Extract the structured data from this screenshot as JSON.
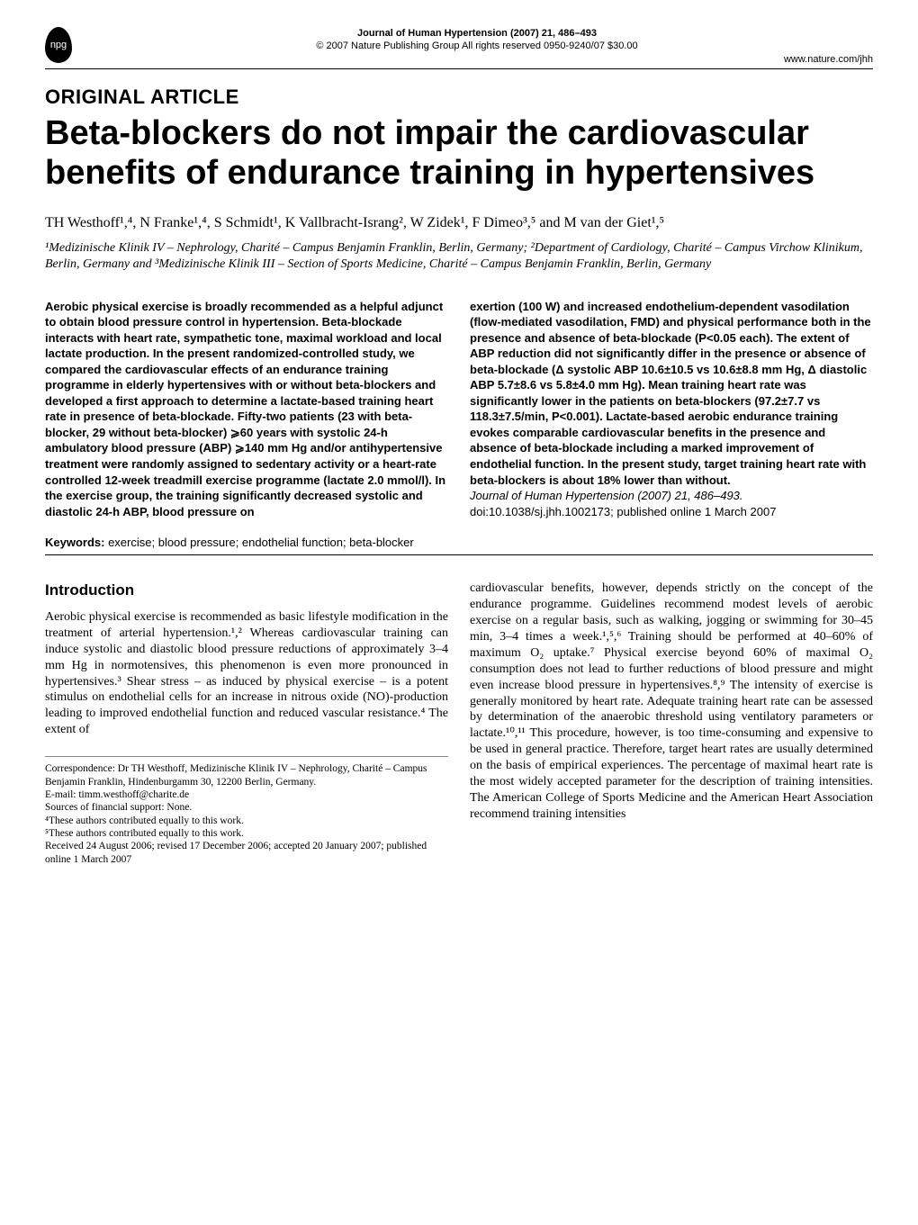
{
  "header": {
    "logo_text": "npg",
    "journal_line": "Journal of Human Hypertension (2007) 21, 486–493",
    "copyright_line": "© 2007 Nature Publishing Group  All rights reserved 0950-9240/07 $30.00",
    "url": "www.nature.com/jhh"
  },
  "section_label": "ORIGINAL ARTICLE",
  "title": "Beta-blockers do not impair the cardiovascular benefits of endurance training in hypertensives",
  "authors": "TH Westhoff¹,⁴, N Franke¹,⁴, S Schmidt¹, K Vallbracht-Israng², W Zidek¹, F Dimeo³,⁵ and M van der Giet¹,⁵",
  "affiliations": "¹Medizinische Klinik IV – Nephrology, Charité – Campus Benjamin Franklin, Berlin, Germany; ²Department of Cardiology, Charité – Campus Virchow Klinikum, Berlin, Germany and ³Medizinische Klinik III – Section of Sports Medicine, Charité – Campus Benjamin Franklin, Berlin, Germany",
  "abstract": {
    "left": "Aerobic physical exercise is broadly recommended as a helpful adjunct to obtain blood pressure control in hypertension. Beta-blockade interacts with heart rate, sympathetic tone, maximal workload and local lactate production. In the present randomized-controlled study, we compared the cardiovascular effects of an endurance training programme in elderly hypertensives with or without beta-blockers and developed a first approach to determine a lactate-based training heart rate in presence of beta-blockade. Fifty-two patients (23 with beta-blocker, 29 without beta-blocker) ⩾60 years with systolic 24-h ambulatory blood pressure (ABP) ⩾140 mm Hg and/or antihypertensive treatment were randomly assigned to sedentary activity or a heart-rate controlled 12-week treadmill exercise programme (lactate 2.0 mmol/l). In the exercise group, the training significantly decreased systolic and diastolic 24-h ABP, blood pressure on",
    "right_main": "exertion (100 W) and increased endothelium-dependent vasodilation (flow-mediated vasodilation, FMD) and physical performance both in the presence and absence of beta-blockade (P<0.05 each). The extent of ABP reduction did not significantly differ in the presence or absence of beta-blockade (Δ systolic ABP 10.6±10.5 vs 10.6±8.8 mm Hg, Δ diastolic ABP 5.7±8.6 vs 5.8±4.0 mm Hg). Mean training heart rate was significantly lower in the patients on beta-blockers (97.2±7.7 vs 118.3±7.5/min, P<0.001). Lactate-based aerobic endurance training evokes comparable cardiovascular benefits in the presence and absence of beta-blockade including a marked improvement of endothelial function. In the present study, target training heart rate with beta-blockers is about 18% lower than without.",
    "right_citation": "Journal of Human Hypertension (2007) 21, 486–493.",
    "right_doi": "doi:10.1038/sj.jhh.1002173; published online 1 March 2007"
  },
  "keywords": {
    "label": "Keywords:",
    "text": " exercise; blood pressure; endothelial function; beta-blocker"
  },
  "introduction": {
    "heading": "Introduction",
    "left": "Aerobic physical exercise is recommended as basic lifestyle modification in the treatment of arterial hypertension.¹,² Whereas cardiovascular training can induce systolic and diastolic blood pressure reductions of approximately 3–4 mm Hg in normotensives, this phenomenon is even more pronounced in hypertensives.³ Shear stress – as induced by physical exercise – is a potent stimulus on endothelial cells for an increase in nitrous oxide (NO)-production leading to improved endothelial function and reduced vascular resistance.⁴ The extent of",
    "right": "cardiovascular benefits, however, depends strictly on the concept of the endurance programme. Guidelines recommend modest levels of aerobic exercise on a regular basis, such as walking, jogging or swimming for 30–45 min, 3–4 times a week.¹,⁵,⁶ Training should be performed at 40–60% of maximum O₂ uptake.⁷ Physical exercise beyond 60% of maximal O₂ consumption does not lead to further reductions of blood pressure and might even increase blood pressure in hypertensives.⁸,⁹ The intensity of exercise is generally monitored by heart rate. Adequate training heart rate can be assessed by determination of the anaerobic threshold using ventilatory parameters or lactate.¹⁰,¹¹ This procedure, however, is too time-consuming and expensive to be used in general practice. Therefore, target heart rates are usually determined on the basis of empirical experiences. The percentage of maximal heart rate is the most widely accepted parameter for the description of training intensities. The American College of Sports Medicine and the American Heart Association recommend training intensities"
  },
  "footer": {
    "correspondence": "Correspondence: Dr TH Westhoff, Medizinische Klinik IV – Nephrology, Charité – Campus Benjamin Franklin, Hindenburgamm 30, 12200 Berlin, Germany.",
    "email": "E-mail: timm.westhoff@charite.de",
    "support": "Sources of financial support: None.",
    "note4": "⁴These authors contributed equally to this work.",
    "note5": "⁵These authors contributed equally to this work.",
    "received": "Received 24 August 2006; revised 17 December 2006; accepted 20 January 2007; published online 1 March 2007"
  },
  "colors": {
    "text": "#000000",
    "background": "#ffffff",
    "rule": "#000000",
    "footer_rule": "#888888"
  },
  "fonts": {
    "sans": "Arial, Helvetica, sans-serif",
    "serif": "Georgia, 'Times New Roman', serif",
    "title_size_pt": 28,
    "section_label_size_pt": 16,
    "authors_size_pt": 12,
    "abstract_size_pt": 10,
    "body_size_pt": 10.5,
    "footer_size_pt": 8.5
  }
}
